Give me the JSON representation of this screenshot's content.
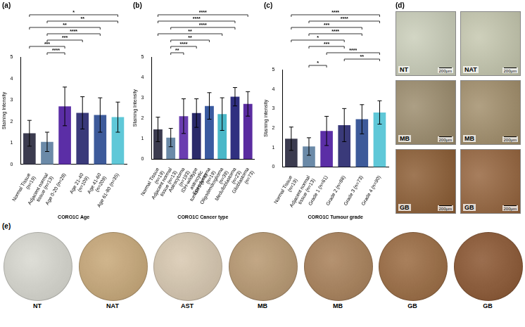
{
  "chart_data": [
    {
      "panel": "(a)",
      "type": "bar",
      "categories": [
        "Normal Tissue (n=19)",
        "Adjacent normal tissue (n=13)",
        "Age 0-20 (n=28)",
        "Age 21-40 (n=109)",
        "Age 41-60 (n=209)",
        "Age 61-80 (n=35)"
      ],
      "values": [
        1.45,
        1.05,
        2.7,
        2.4,
        2.3,
        2.2
      ],
      "error": [
        0.6,
        0.45,
        0.9,
        0.75,
        0.8,
        0.7
      ],
      "colors": [
        "#3b3b4f",
        "#6b8aa8",
        "#5b2ea6",
        "#3a3a7a",
        "#3d5a9a",
        "#5fc8d8"
      ],
      "y_label": "Staining Intensity",
      "x_label": "CORO1C Age",
      "ylim": [
        0,
        5
      ],
      "yticks": [
        0,
        1,
        2,
        3,
        4,
        5
      ],
      "grid": false,
      "significance": [
        {
          "from": 1,
          "to": 2,
          "label": "****"
        },
        {
          "from": 0,
          "to": 2,
          "label": "***"
        },
        {
          "from": 1,
          "to": 3,
          "label": "***"
        },
        {
          "from": 1,
          "to": 4,
          "label": "****"
        },
        {
          "from": 0,
          "to": 4,
          "label": "**"
        },
        {
          "from": 1,
          "to": 5,
          "label": "**"
        },
        {
          "from": 0,
          "to": 5,
          "label": "*"
        }
      ]
    },
    {
      "panel": "(b)",
      "type": "bar",
      "categories": [
        "Normal Tissue (n=19)",
        "Adjacent normal tissue (n=13)",
        "Astrocytoma (n=193)",
        "IDH-wildtype astrocytic tumours (n=8)",
        "Ependymoma (n=19)",
        "Oligodendroglioma (n=39)",
        "Medulloblastoma (n=23)",
        "Glioblastoma (n=73)"
      ],
      "values": [
        1.45,
        1.05,
        2.1,
        2.25,
        2.6,
        2.2,
        3.05,
        2.7
      ],
      "error": [
        0.6,
        0.45,
        0.85,
        0.7,
        0.65,
        0.8,
        0.45,
        0.6
      ],
      "colors": [
        "#3b3b4f",
        "#6b8aa8",
        "#6a3db0",
        "#2a2a6a",
        "#3a5aa0",
        "#4ab8c8",
        "#303080",
        "#5a2ca0"
      ],
      "y_label": "Staining Intensity",
      "x_label": "CORO1C Cancer type",
      "ylim": [
        0,
        5
      ],
      "yticks": [
        0,
        1,
        2,
        3,
        4,
        5
      ],
      "grid": false,
      "significance": [
        {
          "from": 1,
          "to": 2,
          "label": "**"
        },
        {
          "from": 1,
          "to": 3,
          "label": "****"
        },
        {
          "from": 1,
          "to": 4,
          "label": "**"
        },
        {
          "from": 0,
          "to": 5,
          "label": "**"
        },
        {
          "from": 1,
          "to": 6,
          "label": "****"
        },
        {
          "from": 0,
          "to": 6,
          "label": "****"
        },
        {
          "from": 0,
          "to": 7,
          "label": "****"
        }
      ]
    },
    {
      "panel": "(c)",
      "type": "bar",
      "categories": [
        "Normal Tissue (n=19)",
        "Adjacent normal tissue (n=13)",
        "Grade 1 (n=61)",
        "Grade 2 (n=88)",
        "Grade 3 (n=73)",
        "Grade 4 (n=90)"
      ],
      "values": [
        1.45,
        1.05,
        1.85,
        2.15,
        2.45,
        2.8
      ],
      "error": [
        0.6,
        0.45,
        0.75,
        0.85,
        0.75,
        0.6
      ],
      "colors": [
        "#3b3b4f",
        "#6b8aa8",
        "#5b2ea6",
        "#3a3a7a",
        "#3d5a9a",
        "#5fc8d8"
      ],
      "y_label": "Staining intensity",
      "x_label": "CORO1C Tumour grade",
      "ylim": [
        0,
        5
      ],
      "yticks": [
        0,
        1,
        2,
        3,
        4,
        5
      ],
      "grid": false,
      "significance": [
        {
          "from": 1,
          "to": 2,
          "label": "*"
        },
        {
          "from": 3,
          "to": 5,
          "label": "**"
        },
        {
          "from": 2,
          "to": 5,
          "label": "****"
        },
        {
          "from": 1,
          "to": 3,
          "label": "***"
        },
        {
          "from": 0,
          "to": 3,
          "label": "*"
        },
        {
          "from": 1,
          "to": 4,
          "label": "****"
        },
        {
          "from": 0,
          "to": 4,
          "label": "***"
        },
        {
          "from": 1,
          "to": 5,
          "label": "****"
        },
        {
          "from": 0,
          "to": 5,
          "label": "****"
        }
      ]
    }
  ],
  "micrographs": {
    "panel": "(d)",
    "scale_bar": "200μm",
    "tiles": [
      {
        "label": "NT",
        "color": "#c9cdb8"
      },
      {
        "label": "NAT",
        "color": "#c4c6ad"
      },
      {
        "label": "MB",
        "color": "#9a8a6a"
      },
      {
        "label": "MB",
        "color": "#a08c68"
      },
      {
        "label": "GB",
        "color": "#8a5a30"
      },
      {
        "label": "GB",
        "color": "#94623a"
      }
    ]
  },
  "tissue_cores": {
    "panel": "(e)",
    "cores": [
      {
        "label": "NT",
        "color": "#d8d8d0"
      },
      {
        "label": "NAT",
        "color": "#c8a878"
      },
      {
        "label": "AST",
        "color": "#d8c8b0"
      },
      {
        "label": "MB",
        "color": "#b89870"
      },
      {
        "label": "MB",
        "color": "#a88058"
      },
      {
        "label": "GB",
        "color": "#9a6a40"
      },
      {
        "label": "GB",
        "color": "#8a5530"
      }
    ]
  }
}
